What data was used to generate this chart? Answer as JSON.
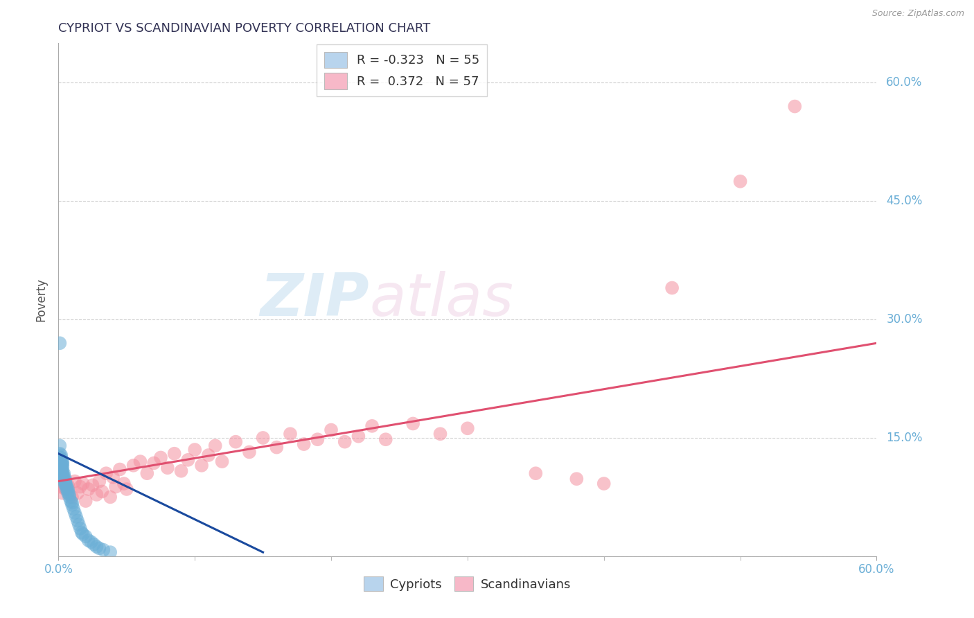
{
  "title": "CYPRIOT VS SCANDINAVIAN POVERTY CORRELATION CHART",
  "source": "Source: ZipAtlas.com",
  "ylabel": "Poverty",
  "xlim": [
    0.0,
    0.6
  ],
  "ylim": [
    0.0,
    0.65
  ],
  "yticks": [
    0.0,
    0.15,
    0.3,
    0.45,
    0.6
  ],
  "ytick_labels": [
    "",
    "15.0%",
    "30.0%",
    "45.0%",
    "60.0%"
  ],
  "xtick_left": "0.0%",
  "xtick_right": "60.0%",
  "legend_r_entries": [
    {
      "label_r": "R = ",
      "label_rv": "-0.323",
      "label_n": "  N = ",
      "label_nv": "55",
      "color": "#b8d4ed"
    },
    {
      "label_r": "R =  ",
      "label_rv": "0.372",
      "label_n": "  N = ",
      "label_nv": "57",
      "color": "#f7b8c8"
    }
  ],
  "legend_labels": [
    "Cypriots",
    "Scandinavians"
  ],
  "cypriot_color": "#6aaed6",
  "scandinavian_color": "#f490a0",
  "trend_cypriot_color": "#1a4a9e",
  "trend_scandinavian_color": "#e05070",
  "watermark_zip": "ZIP",
  "watermark_atlas": "atlas",
  "background_color": "#ffffff",
  "grid_color": "#cccccc",
  "title_color": "#333355",
  "axis_color": "#6aaed6",
  "cypriot_x": [
    0.001,
    0.001,
    0.001,
    0.001,
    0.001,
    0.002,
    0.002,
    0.002,
    0.002,
    0.002,
    0.002,
    0.002,
    0.003,
    0.003,
    0.003,
    0.003,
    0.003,
    0.003,
    0.003,
    0.004,
    0.004,
    0.004,
    0.004,
    0.005,
    0.005,
    0.005,
    0.005,
    0.006,
    0.006,
    0.006,
    0.007,
    0.007,
    0.007,
    0.008,
    0.008,
    0.009,
    0.01,
    0.01,
    0.011,
    0.012,
    0.013,
    0.014,
    0.015,
    0.016,
    0.017,
    0.018,
    0.02,
    0.022,
    0.024,
    0.026,
    0.028,
    0.03,
    0.033,
    0.038,
    0.001
  ],
  "cypriot_y": [
    0.115,
    0.12,
    0.125,
    0.13,
    0.14,
    0.108,
    0.112,
    0.115,
    0.118,
    0.122,
    0.125,
    0.128,
    0.1,
    0.105,
    0.108,
    0.112,
    0.115,
    0.118,
    0.12,
    0.095,
    0.098,
    0.102,
    0.105,
    0.09,
    0.092,
    0.095,
    0.098,
    0.085,
    0.088,
    0.09,
    0.08,
    0.082,
    0.085,
    0.075,
    0.078,
    0.07,
    0.065,
    0.068,
    0.06,
    0.055,
    0.05,
    0.045,
    0.04,
    0.035,
    0.03,
    0.028,
    0.025,
    0.02,
    0.018,
    0.015,
    0.012,
    0.01,
    0.008,
    0.005,
    0.27
  ],
  "scandinavian_x": [
    0.001,
    0.003,
    0.005,
    0.007,
    0.01,
    0.012,
    0.014,
    0.016,
    0.018,
    0.02,
    0.022,
    0.025,
    0.028,
    0.03,
    0.032,
    0.035,
    0.038,
    0.04,
    0.042,
    0.045,
    0.048,
    0.05,
    0.055,
    0.06,
    0.065,
    0.07,
    0.075,
    0.08,
    0.085,
    0.09,
    0.095,
    0.1,
    0.105,
    0.11,
    0.115,
    0.12,
    0.13,
    0.14,
    0.15,
    0.16,
    0.17,
    0.18,
    0.19,
    0.2,
    0.21,
    0.22,
    0.23,
    0.24,
    0.26,
    0.28,
    0.3,
    0.35,
    0.38,
    0.4,
    0.45,
    0.5,
    0.54
  ],
  "scandinavian_y": [
    0.088,
    0.08,
    0.085,
    0.09,
    0.075,
    0.095,
    0.08,
    0.088,
    0.092,
    0.07,
    0.085,
    0.09,
    0.078,
    0.095,
    0.082,
    0.105,
    0.075,
    0.1,
    0.088,
    0.11,
    0.092,
    0.085,
    0.115,
    0.12,
    0.105,
    0.118,
    0.125,
    0.112,
    0.13,
    0.108,
    0.122,
    0.135,
    0.115,
    0.128,
    0.14,
    0.12,
    0.145,
    0.132,
    0.15,
    0.138,
    0.155,
    0.142,
    0.148,
    0.16,
    0.145,
    0.152,
    0.165,
    0.148,
    0.168,
    0.155,
    0.162,
    0.105,
    0.098,
    0.092,
    0.34,
    0.475,
    0.57
  ],
  "scand_trend_x0": 0.0,
  "scand_trend_y0": 0.095,
  "scand_trend_x1": 0.6,
  "scand_trend_y1": 0.27,
  "cyp_trend_x0": 0.0,
  "cyp_trend_y0": 0.13,
  "cyp_trend_x1": 0.15,
  "cyp_trend_y1": 0.005
}
